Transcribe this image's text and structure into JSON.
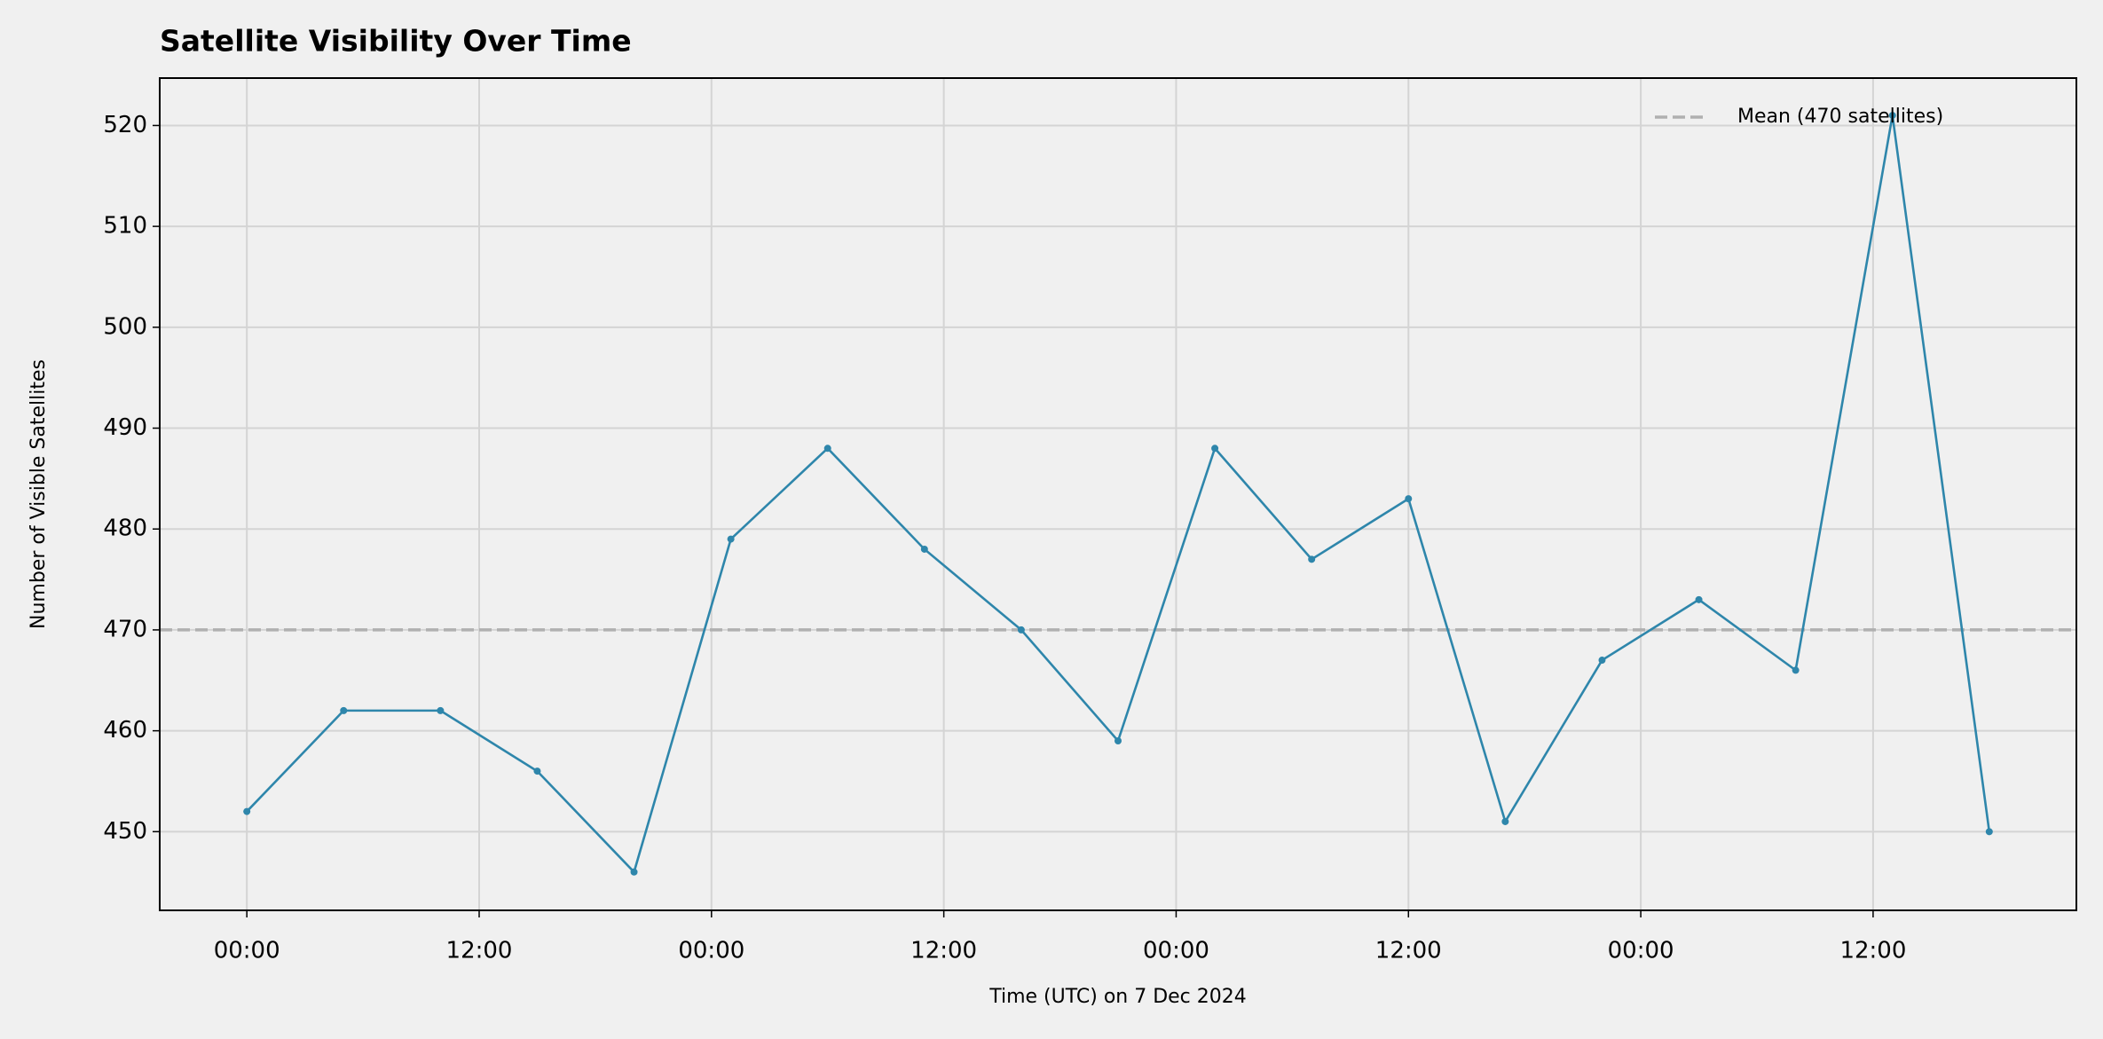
{
  "chart_data": {
    "type": "line",
    "title": "Satellite Visibility Over Time",
    "x_label": "Time (UTC) on 7 Dec 2024",
    "y_label": "Number of Visible Satellites",
    "x": [
      0,
      5,
      10,
      15,
      20,
      25,
      30,
      35,
      40,
      45,
      50,
      55,
      60,
      65,
      70,
      75,
      80,
      85,
      90
    ],
    "series": [
      {
        "color": "#2e86ab",
        "values": [
          452,
          462,
          462,
          456,
          446,
          479,
          488,
          478,
          470,
          459,
          488,
          477,
          483,
          451,
          467,
          473,
          466,
          521,
          450
        ]
      }
    ],
    "reference_line": {
      "value": 470,
      "label": "Mean (470 satellites)",
      "color": "#b0b0b0"
    },
    "xlim": [
      -4.5,
      94.5
    ],
    "xticks": [
      {
        "value": 0,
        "label": "00:00"
      },
      {
        "value": 12,
        "label": "12:00"
      },
      {
        "value": 24,
        "label": "00:00"
      },
      {
        "value": 36,
        "label": "12:00"
      },
      {
        "value": 48,
        "label": "00:00"
      },
      {
        "value": 60,
        "label": "12:00"
      },
      {
        "value": 72,
        "label": "00:00"
      },
      {
        "value": 84,
        "label": "12:00"
      }
    ],
    "ylim": [
      442.2,
      524.7
    ],
    "yticks": [
      450,
      460,
      470,
      480,
      490,
      500,
      510,
      520
    ],
    "grid": true,
    "legend": "upper right"
  }
}
